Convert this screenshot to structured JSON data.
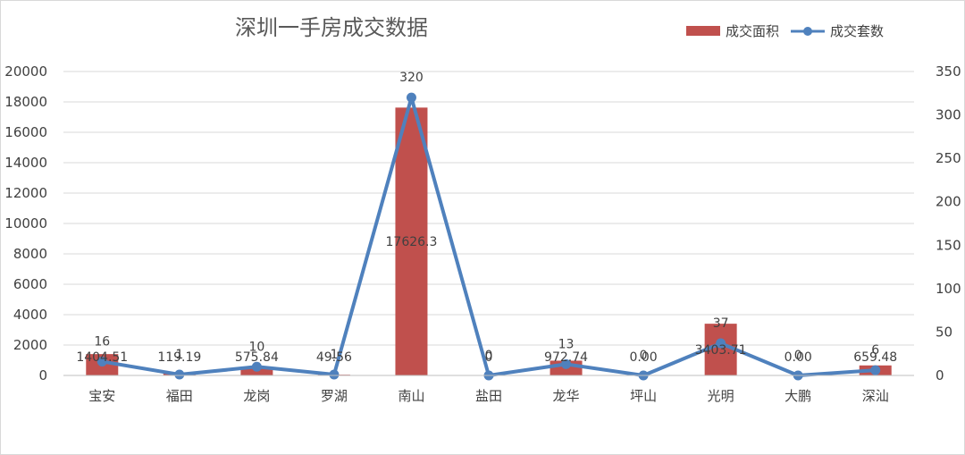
{
  "chart_data": {
    "type": "bar",
    "title": "深圳一手房成交数据",
    "categories": [
      "宝安",
      "福田",
      "龙岗",
      "罗湖",
      "南山",
      "盐田",
      "龙华",
      "坪山",
      "光明",
      "大鹏",
      "深汕"
    ],
    "series": [
      {
        "name": "成交面积",
        "type": "bar",
        "axis": "left",
        "color": "#C0504D",
        "values": [
          1404.51,
          119.19,
          575.84,
          49.56,
          17626.3,
          0,
          972.74,
          0.0,
          3403.71,
          0.0,
          659.48
        ],
        "labels": [
          "1404.51",
          "119.19",
          "575.84",
          "49.56",
          "17626.3",
          "0",
          "972.74",
          "0.00",
          "3403.71",
          "0.00",
          "659.48"
        ]
      },
      {
        "name": "成交套数",
        "type": "line",
        "axis": "right",
        "color": "#4F81BD",
        "values": [
          16,
          1,
          10,
          1,
          320,
          0,
          13,
          0,
          37,
          0,
          6
        ],
        "labels": [
          "16",
          "1",
          "10",
          "1",
          "320",
          "0",
          "13",
          "0",
          "37",
          "0",
          "6"
        ]
      }
    ],
    "y_left": {
      "min": 0,
      "max": 20000,
      "ticks": [
        "0",
        "2000",
        "4000",
        "6000",
        "8000",
        "10000",
        "12000",
        "14000",
        "16000",
        "18000",
        "20000"
      ]
    },
    "y_right": {
      "min": 0,
      "max": 350,
      "ticks": [
        "0",
        "50",
        "100",
        "150",
        "200",
        "250",
        "300",
        "350"
      ]
    },
    "grid": true,
    "legend_position": "top-right"
  }
}
